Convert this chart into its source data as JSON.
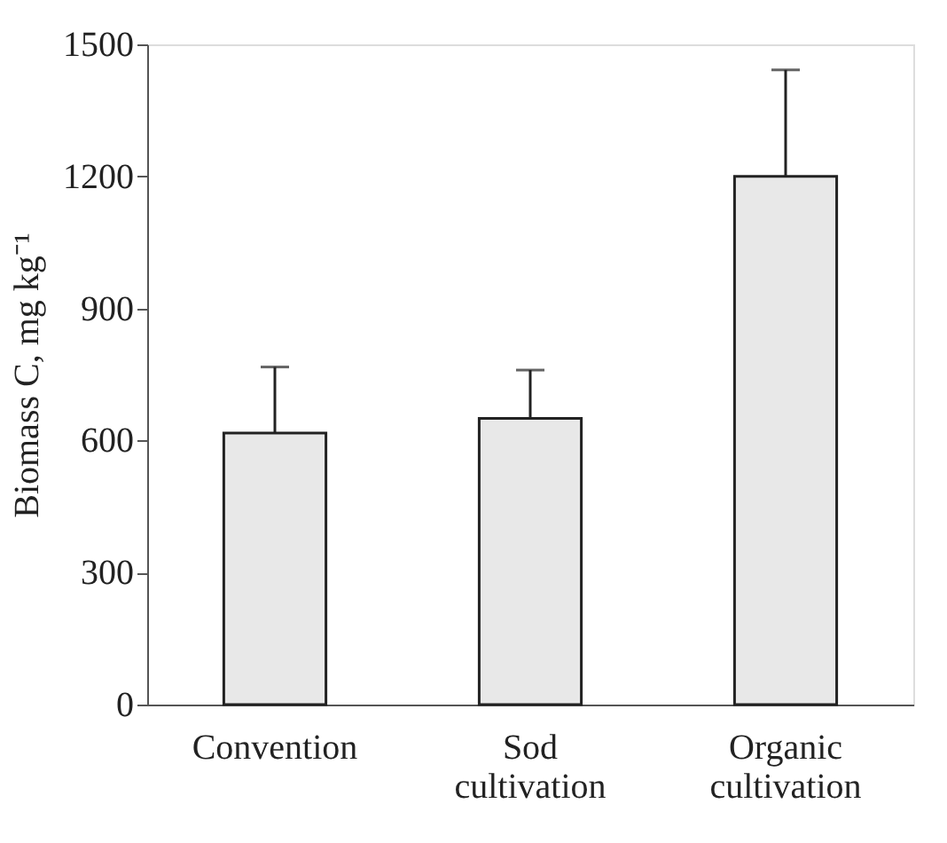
{
  "chart_data": {
    "type": "bar",
    "ylabel": "Biomass C, mg kg⁻¹",
    "categories": [
      "Convention",
      "Sod cultivation",
      "Organic cultivation"
    ],
    "values": [
      617,
      650,
      1200
    ],
    "errors": [
      150,
      110,
      242
    ],
    "color": "#e8e8e8",
    "ylim": [
      0,
      1500
    ],
    "yticks": [
      0,
      300,
      600,
      900,
      1200,
      1500
    ],
    "grid": false
  }
}
